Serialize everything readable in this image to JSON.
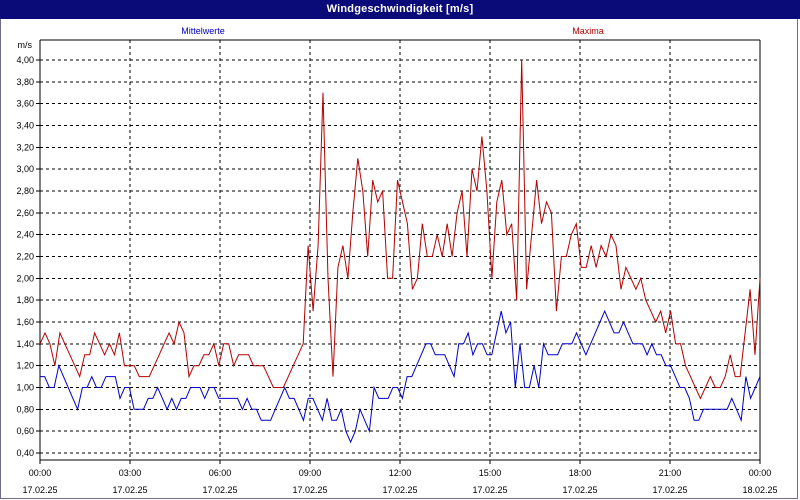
{
  "window": {
    "title": "Windgeschwindigkeit [m/s]"
  },
  "chart_data": {
    "type": "line",
    "title": "Windgeschwindigkeit [m/s]",
    "ylabel": "m/s",
    "xlabel": "",
    "ylim": [
      0.4,
      4.0
    ],
    "y_ticks": [
      "0,40",
      "0,60",
      "0,80",
      "1,00",
      "1,20",
      "1,40",
      "1,60",
      "1,80",
      "2,00",
      "2,20",
      "2,40",
      "2,60",
      "2,80",
      "3,00",
      "3,20",
      "3,40",
      "3,60",
      "3,80",
      "4,00"
    ],
    "x_ticks": [
      {
        "time": "00:00",
        "date": "17.02.25"
      },
      {
        "time": "03:00",
        "date": "17.02.25"
      },
      {
        "time": "06:00",
        "date": "17.02.25"
      },
      {
        "time": "09:00",
        "date": "17.02.25"
      },
      {
        "time": "12:00",
        "date": "17.02.25"
      },
      {
        "time": "15:00",
        "date": "17.02.25"
      },
      {
        "time": "18:00",
        "date": "17.02.25"
      },
      {
        "time": "21:00",
        "date": "17.02.25"
      },
      {
        "time": "00:00",
        "date": "18.02.25"
      }
    ],
    "x_start": "17.02.25 00:00",
    "x_end": "18.02.25 00:00",
    "sample_interval_minutes": 10,
    "grid": true,
    "colors": {
      "mittelwerte": "#0000c8",
      "maxima": "#b40000",
      "grid": "#000000",
      "background": "#ffffff",
      "titlebar": "#0a0a78"
    },
    "series": [
      {
        "name": "Mittelwerte",
        "color": "#0000c8",
        "values": [
          1.1,
          1.1,
          1.0,
          1.0,
          1.2,
          1.1,
          1.0,
          0.9,
          0.8,
          1.0,
          1.0,
          1.1,
          1.0,
          1.0,
          1.1,
          1.1,
          1.1,
          0.9,
          1.0,
          1.0,
          0.8,
          0.8,
          0.8,
          0.9,
          0.9,
          1.0,
          0.9,
          0.8,
          0.9,
          0.8,
          0.9,
          0.9,
          1.0,
          1.0,
          1.0,
          0.9,
          1.0,
          1.0,
          0.9,
          0.9,
          0.9,
          0.9,
          0.9,
          0.8,
          0.9,
          0.8,
          0.8,
          0.7,
          0.7,
          0.7,
          0.8,
          0.9,
          1.0,
          0.9,
          0.9,
          0.8,
          0.7,
          0.9,
          0.9,
          0.8,
          0.7,
          0.9,
          0.7,
          0.7,
          0.8,
          0.6,
          0.5,
          0.6,
          0.8,
          0.7,
          0.6,
          1.0,
          0.9,
          0.9,
          0.9,
          1.0,
          1.0,
          0.9,
          1.1,
          1.1,
          1.2,
          1.3,
          1.4,
          1.4,
          1.3,
          1.3,
          1.3,
          1.2,
          1.1,
          1.4,
          1.4,
          1.5,
          1.3,
          1.4,
          1.4,
          1.3,
          1.3,
          1.5,
          1.7,
          1.5,
          1.6,
          1.0,
          1.4,
          1.0,
          1.0,
          1.2,
          1.0,
          1.4,
          1.3,
          1.3,
          1.3,
          1.4,
          1.4,
          1.4,
          1.5,
          1.4,
          1.3,
          1.4,
          1.5,
          1.6,
          1.7,
          1.6,
          1.5,
          1.5,
          1.6,
          1.5,
          1.4,
          1.4,
          1.4,
          1.3,
          1.4,
          1.3,
          1.3,
          1.2,
          1.2,
          1.1,
          1.0,
          1.0,
          0.9,
          0.7,
          0.7,
          0.8,
          0.8,
          0.8,
          0.8,
          0.8,
          0.8,
          0.9,
          0.8,
          0.7,
          1.1,
          0.9,
          1.0,
          1.1
        ]
      },
      {
        "name": "Maxima",
        "color": "#b40000",
        "values": [
          1.4,
          1.5,
          1.4,
          1.2,
          1.5,
          1.4,
          1.3,
          1.2,
          1.1,
          1.3,
          1.3,
          1.5,
          1.4,
          1.3,
          1.4,
          1.3,
          1.5,
          1.2,
          1.2,
          1.2,
          1.1,
          1.1,
          1.1,
          1.2,
          1.3,
          1.4,
          1.5,
          1.4,
          1.6,
          1.5,
          1.1,
          1.2,
          1.2,
          1.3,
          1.3,
          1.4,
          1.2,
          1.4,
          1.4,
          1.2,
          1.3,
          1.3,
          1.3,
          1.2,
          1.2,
          1.2,
          1.1,
          1.0,
          1.0,
          1.0,
          1.1,
          1.2,
          1.3,
          1.4,
          2.3,
          1.7,
          2.3,
          3.7,
          2.0,
          1.1,
          2.1,
          2.3,
          2.0,
          2.6,
          3.1,
          2.8,
          2.2,
          2.9,
          2.7,
          2.8,
          2.0,
          2.0,
          2.9,
          2.7,
          2.5,
          1.9,
          2.0,
          2.5,
          2.2,
          2.2,
          2.4,
          2.2,
          2.5,
          2.2,
          2.6,
          2.8,
          2.2,
          3.0,
          2.8,
          3.3,
          2.8,
          2.0,
          2.7,
          2.9,
          2.4,
          2.5,
          1.8,
          4.0,
          1.9,
          2.4,
          2.9,
          2.5,
          2.7,
          2.6,
          1.7,
          2.2,
          2.2,
          2.4,
          2.5,
          2.1,
          2.1,
          2.3,
          2.1,
          2.3,
          2.2,
          2.4,
          2.3,
          1.9,
          2.1,
          2.0,
          1.9,
          2.0,
          1.8,
          1.7,
          1.6,
          1.7,
          1.5,
          1.7,
          1.4,
          1.4,
          1.2,
          1.1,
          1.0,
          0.9,
          1.0,
          1.1,
          1.0,
          1.0,
          1.1,
          1.3,
          1.1,
          1.1,
          1.5,
          1.9,
          1.3,
          2.0
        ]
      }
    ],
    "legend": [
      "Mittelwerte",
      "Maxima"
    ]
  }
}
